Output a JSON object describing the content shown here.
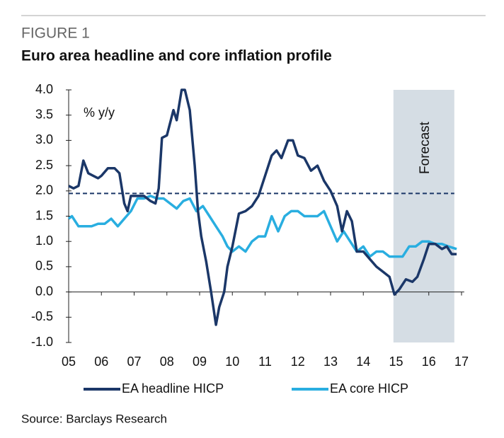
{
  "chart_data": {
    "type": "line",
    "figure_label": "FIGURE 1",
    "title": "Euro area headline and core inflation profile",
    "y_unit_label": "% y/y",
    "forecast_label": "Forecast",
    "source": "Source: Barclays Research",
    "xlim": [
      2005,
      2017
    ],
    "xticks": [
      {
        "value": 2005,
        "label": "05"
      },
      {
        "value": 2006,
        "label": "06"
      },
      {
        "value": 2007,
        "label": "07"
      },
      {
        "value": 2008,
        "label": "08"
      },
      {
        "value": 2009,
        "label": "09"
      },
      {
        "value": 2010,
        "label": "10"
      },
      {
        "value": 2011,
        "label": "11"
      },
      {
        "value": 2012,
        "label": "12"
      },
      {
        "value": 2013,
        "label": "13"
      },
      {
        "value": 2014,
        "label": "14"
      },
      {
        "value": 2015,
        "label": "15"
      },
      {
        "value": 2016,
        "label": "16"
      },
      {
        "value": 2017,
        "label": "17"
      }
    ],
    "ylim": [
      -1,
      4
    ],
    "yticks": [
      {
        "value": 4,
        "label": "4.0"
      },
      {
        "value": 3.5,
        "label": "3.5"
      },
      {
        "value": 3,
        "label": "3.0"
      },
      {
        "value": 2.5,
        "label": "2.5"
      },
      {
        "value": 2,
        "label": "2.0"
      },
      {
        "value": 1.5,
        "label": "1.5"
      },
      {
        "value": 1,
        "label": "1.0"
      },
      {
        "value": 0.5,
        "label": "0.5"
      },
      {
        "value": 0,
        "label": "0.0"
      },
      {
        "value": -0.5,
        "label": "-0.5"
      },
      {
        "value": -1,
        "label": "-1.0"
      }
    ],
    "reference_line": 1.95,
    "reference_color": "#1b3768",
    "forecast_span": [
      2014.92,
      2016.78
    ],
    "forecast_color": "#d5dde4",
    "series": [
      {
        "name": "EA headline HICP",
        "color": "#1b3768",
        "x": [
          2005.0,
          2005.15,
          2005.3,
          2005.45,
          2005.6,
          2005.75,
          2005.9,
          2006.0,
          2006.2,
          2006.4,
          2006.55,
          2006.7,
          2006.8,
          2006.9,
          2007.1,
          2007.3,
          2007.5,
          2007.65,
          2007.75,
          2007.85,
          2008.0,
          2008.2,
          2008.3,
          2008.45,
          2008.55,
          2008.7,
          2008.85,
          2008.95,
          2009.05,
          2009.2,
          2009.35,
          2009.5,
          2009.6,
          2009.75,
          2009.85,
          2010.0,
          2010.2,
          2010.4,
          2010.6,
          2010.8,
          2011.0,
          2011.2,
          2011.35,
          2011.5,
          2011.7,
          2011.85,
          2012.0,
          2012.2,
          2012.4,
          2012.6,
          2012.8,
          2013.0,
          2013.2,
          2013.35,
          2013.5,
          2013.65,
          2013.8,
          2014.0,
          2014.2,
          2014.4,
          2014.6,
          2014.8,
          2014.95,
          2015.1,
          2015.3,
          2015.5,
          2015.65,
          2015.85,
          2016.0,
          2016.2,
          2016.4,
          2016.55,
          2016.7,
          2016.85
        ],
        "values": [
          2.1,
          2.05,
          2.1,
          2.6,
          2.35,
          2.3,
          2.25,
          2.3,
          2.45,
          2.45,
          2.35,
          1.75,
          1.6,
          1.9,
          1.9,
          1.9,
          1.8,
          1.75,
          2.05,
          3.05,
          3.1,
          3.6,
          3.4,
          4.0,
          4.0,
          3.6,
          2.5,
          1.6,
          1.1,
          0.6,
          0.0,
          -0.65,
          -0.3,
          0.0,
          0.5,
          0.9,
          1.55,
          1.6,
          1.7,
          1.9,
          2.3,
          2.7,
          2.8,
          2.65,
          3.0,
          3.0,
          2.7,
          2.65,
          2.4,
          2.5,
          2.2,
          2.0,
          1.7,
          1.2,
          1.6,
          1.4,
          0.8,
          0.8,
          0.65,
          0.5,
          0.4,
          0.3,
          -0.05,
          0.05,
          0.25,
          0.2,
          0.3,
          0.65,
          0.95,
          0.95,
          0.85,
          0.9,
          0.75,
          0.75
        ]
      },
      {
        "name": "EA core HICP",
        "color": "#29aee0",
        "x": [
          2005.0,
          2005.1,
          2005.3,
          2005.5,
          2005.7,
          2005.9,
          2006.1,
          2006.3,
          2006.5,
          2006.7,
          2006.9,
          2007.1,
          2007.3,
          2007.5,
          2007.7,
          2007.9,
          2008.1,
          2008.3,
          2008.5,
          2008.7,
          2008.9,
          2009.1,
          2009.3,
          2009.5,
          2009.7,
          2009.85,
          2010.0,
          2010.2,
          2010.4,
          2010.6,
          2010.8,
          2011.0,
          2011.2,
          2011.4,
          2011.6,
          2011.8,
          2012.0,
          2012.2,
          2012.4,
          2012.6,
          2012.8,
          2013.0,
          2013.2,
          2013.4,
          2013.6,
          2013.8,
          2014.0,
          2014.2,
          2014.4,
          2014.6,
          2014.8,
          2015.0,
          2015.2,
          2015.4,
          2015.6,
          2015.8,
          2016.0,
          2016.2,
          2016.4,
          2016.6,
          2016.85
        ],
        "values": [
          1.45,
          1.5,
          1.3,
          1.3,
          1.3,
          1.35,
          1.35,
          1.45,
          1.3,
          1.45,
          1.6,
          1.85,
          1.85,
          1.9,
          1.85,
          1.85,
          1.75,
          1.65,
          1.8,
          1.85,
          1.6,
          1.7,
          1.5,
          1.3,
          1.1,
          0.9,
          0.8,
          0.9,
          0.8,
          1.0,
          1.1,
          1.1,
          1.5,
          1.2,
          1.5,
          1.6,
          1.6,
          1.5,
          1.5,
          1.5,
          1.6,
          1.3,
          1.0,
          1.2,
          1.0,
          0.8,
          0.9,
          0.7,
          0.8,
          0.8,
          0.7,
          0.7,
          0.7,
          0.9,
          0.9,
          1.0,
          1.0,
          0.95,
          0.95,
          0.9,
          0.85
        ]
      }
    ]
  }
}
